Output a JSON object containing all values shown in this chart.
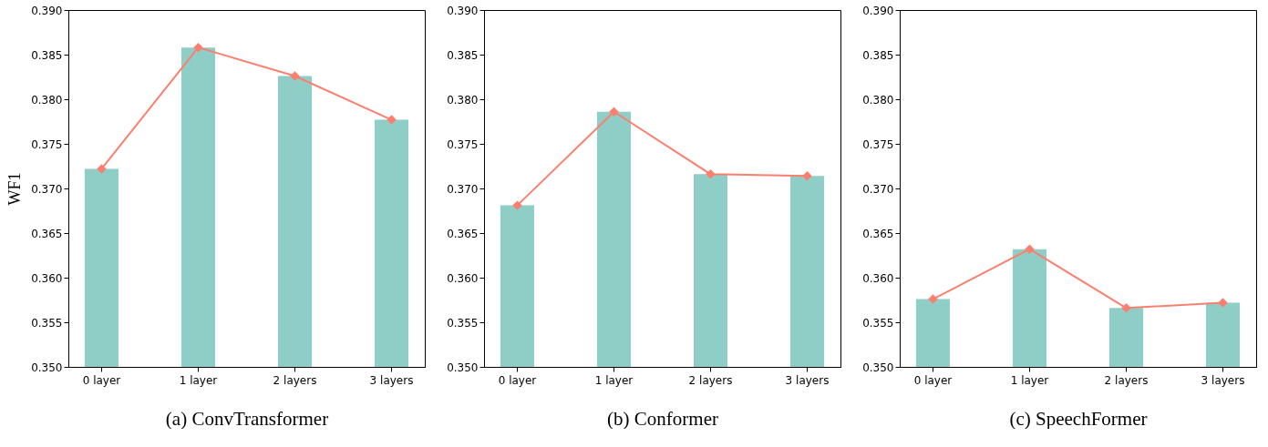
{
  "chart_data": [
    {
      "type": "bar",
      "xlabel": "(a) ConvTransformer",
      "ylabel": "WF1",
      "categories": [
        "0 layer",
        "1 layer",
        "2 layers",
        "3 layers"
      ],
      "series": [
        {
          "color": "#8fcec7",
          "values": [
            0.3722,
            0.3858,
            0.3826,
            0.3777
          ]
        },
        {
          "type": "line",
          "color": "#fa7f6f",
          "values": [
            0.3722,
            0.3858,
            0.3826,
            0.3777
          ]
        }
      ],
      "ylim": [
        0.35,
        0.39
      ],
      "yticks": [
        {
          "value": 0.35,
          "label": "0.350"
        },
        0.355,
        {
          "value": 0.36,
          "label": "0.360"
        },
        0.365,
        {
          "value": 0.37,
          "label": "0.370"
        },
        0.375,
        {
          "value": 0.38,
          "label": "0.380"
        },
        0.385,
        {
          "value": 0.39,
          "label": "0.390"
        }
      ],
      "marker": "diamond",
      "grid": false
    },
    {
      "type": "bar",
      "xlabel": "(b) Conformer",
      "categories": [
        "0 layer",
        "1 layer",
        "2 layers",
        "3 layers"
      ],
      "series": [
        {
          "color": "#8fcec7",
          "values": [
            0.3681,
            0.3786,
            0.3716,
            0.3714
          ]
        },
        {
          "type": "line",
          "color": "#fa7f6f",
          "values": [
            0.3681,
            0.3786,
            0.3716,
            0.3714
          ]
        }
      ],
      "ylim": [
        0.35,
        0.39
      ],
      "yticks": [
        {
          "value": 0.35,
          "label": "0.350"
        },
        0.355,
        {
          "value": 0.36,
          "label": "0.360"
        },
        0.365,
        {
          "value": 0.37,
          "label": "0.370"
        },
        0.375,
        {
          "value": 0.38,
          "label": "0.380"
        },
        0.385,
        {
          "value": 0.39,
          "label": "0.390"
        }
      ],
      "marker": "diamond",
      "grid": false
    },
    {
      "type": "bar",
      "xlabel": "(c) SpeechFormer",
      "categories": [
        "0 layer",
        "1 layer",
        "2 layers",
        "3 layers"
      ],
      "series": [
        {
          "color": "#8fcec7",
          "values": [
            0.3576,
            0.3632,
            0.3566,
            0.3572
          ]
        },
        {
          "type": "line",
          "color": "#fa7f6f",
          "values": [
            0.3576,
            0.3632,
            0.3566,
            0.3572
          ]
        }
      ],
      "ylim": [
        0.35,
        0.39
      ],
      "yticks": [
        {
          "value": 0.35,
          "label": "0.350"
        },
        0.355,
        {
          "value": 0.36,
          "label": "0.360"
        },
        0.365,
        {
          "value": 0.37,
          "label": "0.370"
        },
        0.375,
        {
          "value": 0.38,
          "label": "0.380"
        },
        0.385,
        {
          "value": 0.39,
          "label": "0.390"
        }
      ],
      "marker": "diamond",
      "grid": false
    }
  ]
}
